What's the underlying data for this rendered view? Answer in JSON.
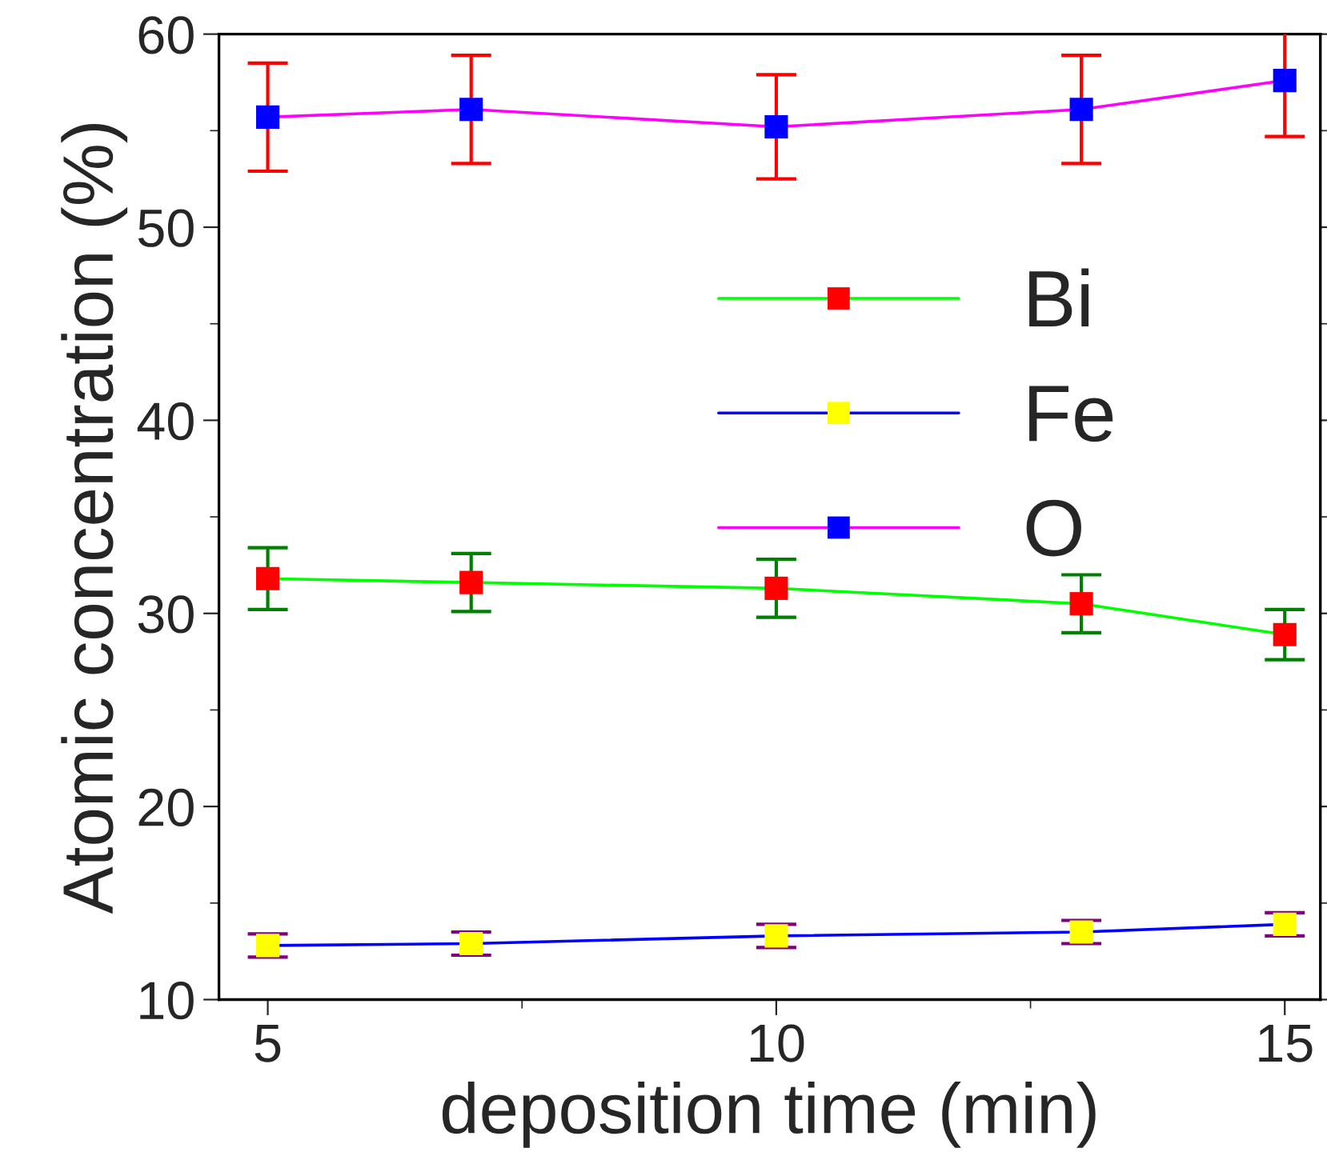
{
  "chart_data": {
    "type": "line",
    "xlabel": "deposition time (min)",
    "ylabel": "Atomic concentration (%)",
    "x": [
      5,
      7,
      10,
      13,
      15
    ],
    "series": [
      {
        "name": "Bi",
        "color": "#00ff00",
        "colors": [
          "#ff0000",
          "#ff0000",
          "#ff0000",
          "#ff0000",
          "#ff0000"
        ],
        "values": [
          31.8,
          31.6,
          31.3,
          30.5,
          28.9
        ],
        "errors": [
          1.6,
          1.5,
          1.5,
          1.5,
          1.3
        ]
      },
      {
        "name": "Fe",
        "color": "#0000ff",
        "colors": [
          "#ffff00",
          "#ffff00",
          "#ffff00",
          "#ffff00",
          "#ffff00"
        ],
        "values": [
          12.8,
          12.9,
          13.3,
          13.5,
          13.9
        ],
        "errors": [
          0.6,
          0.6,
          0.6,
          0.6,
          0.6
        ]
      },
      {
        "name": "O",
        "color": "#ff00ff",
        "colors": [
          "#0000ff",
          "#0000ff",
          "#0000ff",
          "#0000ff",
          "#0000ff"
        ],
        "values": [
          55.7,
          56.1,
          55.2,
          56.1,
          57.6
        ],
        "errors": [
          2.8,
          2.8,
          2.7,
          2.8,
          2.9
        ]
      }
    ],
    "xlim": [
      4.52,
      15.35
    ],
    "ylim": [
      10,
      60
    ],
    "xticks": [
      5,
      10,
      15
    ],
    "yticks": [
      10,
      20,
      30,
      40,
      50,
      60
    ],
    "marker": "square",
    "line_style": "solid",
    "legend": "center right",
    "grid": false
  }
}
